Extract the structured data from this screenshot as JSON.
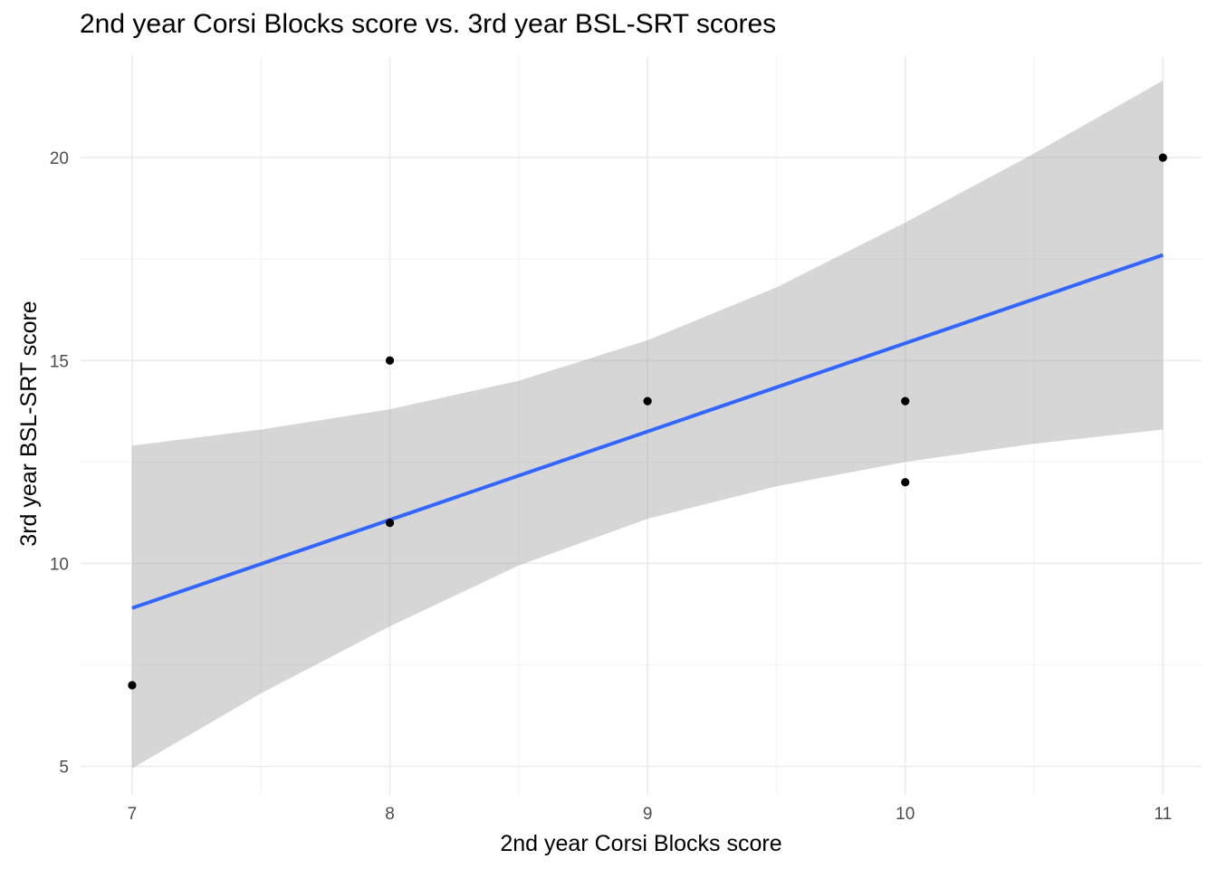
{
  "chart_data": {
    "type": "scatter",
    "title": "2nd year Corsi Blocks score vs. 3rd year BSL-SRT scores",
    "xlabel": "2nd year Corsi Blocks score",
    "ylabel": "3rd year BSL-SRT score",
    "xlim": [
      6.8,
      11.15
    ],
    "ylim": [
      4.3,
      22.5
    ],
    "x_ticks": [
      7,
      8,
      9,
      10,
      11
    ],
    "x_tick_labels": [
      "7",
      "8",
      "9",
      "10",
      "11"
    ],
    "y_ticks": [
      5,
      10,
      15,
      20
    ],
    "y_tick_labels": [
      "5",
      "10",
      "15",
      "20"
    ],
    "x_minor_ticks": [
      7.5,
      8.5,
      9.5,
      10.5
    ],
    "y_minor_ticks": [
      7.5,
      12.5,
      17.5
    ],
    "grid": true,
    "points": [
      {
        "x": 7,
        "y": 7
      },
      {
        "x": 8,
        "y": 15
      },
      {
        "x": 8,
        "y": 11
      },
      {
        "x": 9,
        "y": 14
      },
      {
        "x": 10,
        "y": 14
      },
      {
        "x": 10,
        "y": 12
      },
      {
        "x": 11,
        "y": 20
      }
    ],
    "fit_line": {
      "x": [
        7,
        11
      ],
      "y": [
        8.9,
        17.6
      ]
    },
    "confidence_band": {
      "x": [
        7.0,
        7.5,
        8.0,
        8.5,
        9.0,
        9.5,
        10.0,
        10.5,
        11.0
      ],
      "upper": [
        12.9,
        13.3,
        13.8,
        14.5,
        15.5,
        16.8,
        18.4,
        20.1,
        21.9
      ],
      "lower": [
        4.95,
        6.8,
        8.45,
        9.95,
        11.1,
        11.9,
        12.5,
        12.95,
        13.3
      ]
    },
    "colors": {
      "points": "#000000",
      "fit_line": "#3366FF",
      "confidence_band": "#999999",
      "grid_major": "#EBEBEB",
      "grid_minor": "#F4F4F4"
    }
  }
}
